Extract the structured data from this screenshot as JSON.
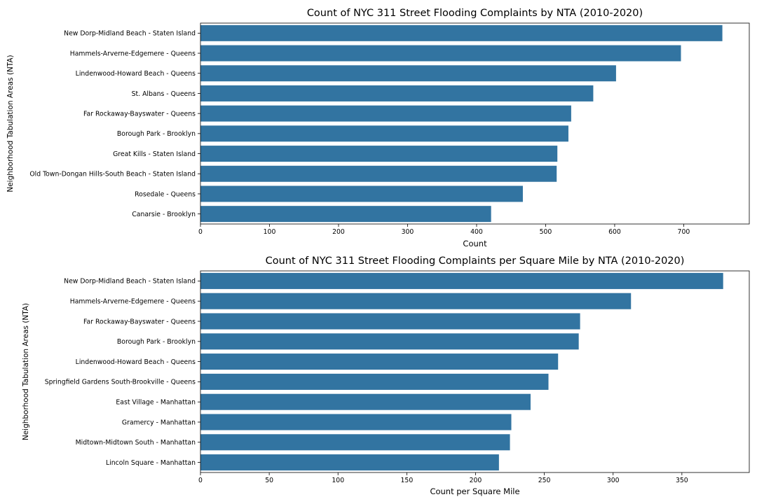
{
  "chart_data": [
    {
      "type": "bar",
      "orientation": "horizontal",
      "title": "Count of NYC 311 Street Flooding Complaints by NTA (2010-2020)",
      "xlabel": "Count",
      "ylabel": "Neighborhood Tabulation Areas (NTA)",
      "xlim": [
        0,
        795
      ],
      "xticks": [
        0,
        100,
        200,
        300,
        400,
        500,
        600,
        700
      ],
      "color": "#3274a1",
      "grid": false,
      "categories": [
        "New Dorp-Midland Beach - Staten Island",
        "Hammels-Arverne-Edgemere - Queens",
        "Lindenwood-Howard Beach - Queens",
        "St. Albans - Queens",
        "Far Rockaway-Bayswater - Queens",
        "Borough Park - Brooklyn",
        "Great Kills - Staten Island",
        "Old Town-Dongan Hills-South Beach - Staten Island",
        "Rosedale - Queens",
        "Canarsie - Brooklyn"
      ],
      "values": [
        756,
        696,
        602,
        569,
        537,
        533,
        517,
        516,
        467,
        421
      ]
    },
    {
      "type": "bar",
      "orientation": "horizontal",
      "title": "Count of NYC 311 Street Flooding Complaints per Square Mile by NTA (2010-2020)",
      "xlabel": "Count per Square Mile",
      "ylabel": "Neighborhood Tabulation Areas (NTA)",
      "xlim": [
        0,
        399
      ],
      "xticks": [
        0,
        50,
        100,
        150,
        200,
        250,
        300,
        350
      ],
      "color": "#3274a1",
      "grid": false,
      "categories": [
        "New Dorp-Midland Beach - Staten Island",
        "Hammels-Arverne-Edgemere - Queens",
        "Far Rockaway-Bayswater - Queens",
        "Borough Park - Brooklyn",
        "Lindenwood-Howard Beach - Queens",
        "Springfield Gardens South-Brookville - Queens",
        "East Village - Manhattan",
        "Gramercy - Manhattan",
        "Midtown-Midtown South - Manhattan",
        "Lincoln Square - Manhattan"
      ],
      "values": [
        380,
        313,
        276,
        275,
        260,
        253,
        240,
        226,
        225,
        217
      ]
    }
  ]
}
